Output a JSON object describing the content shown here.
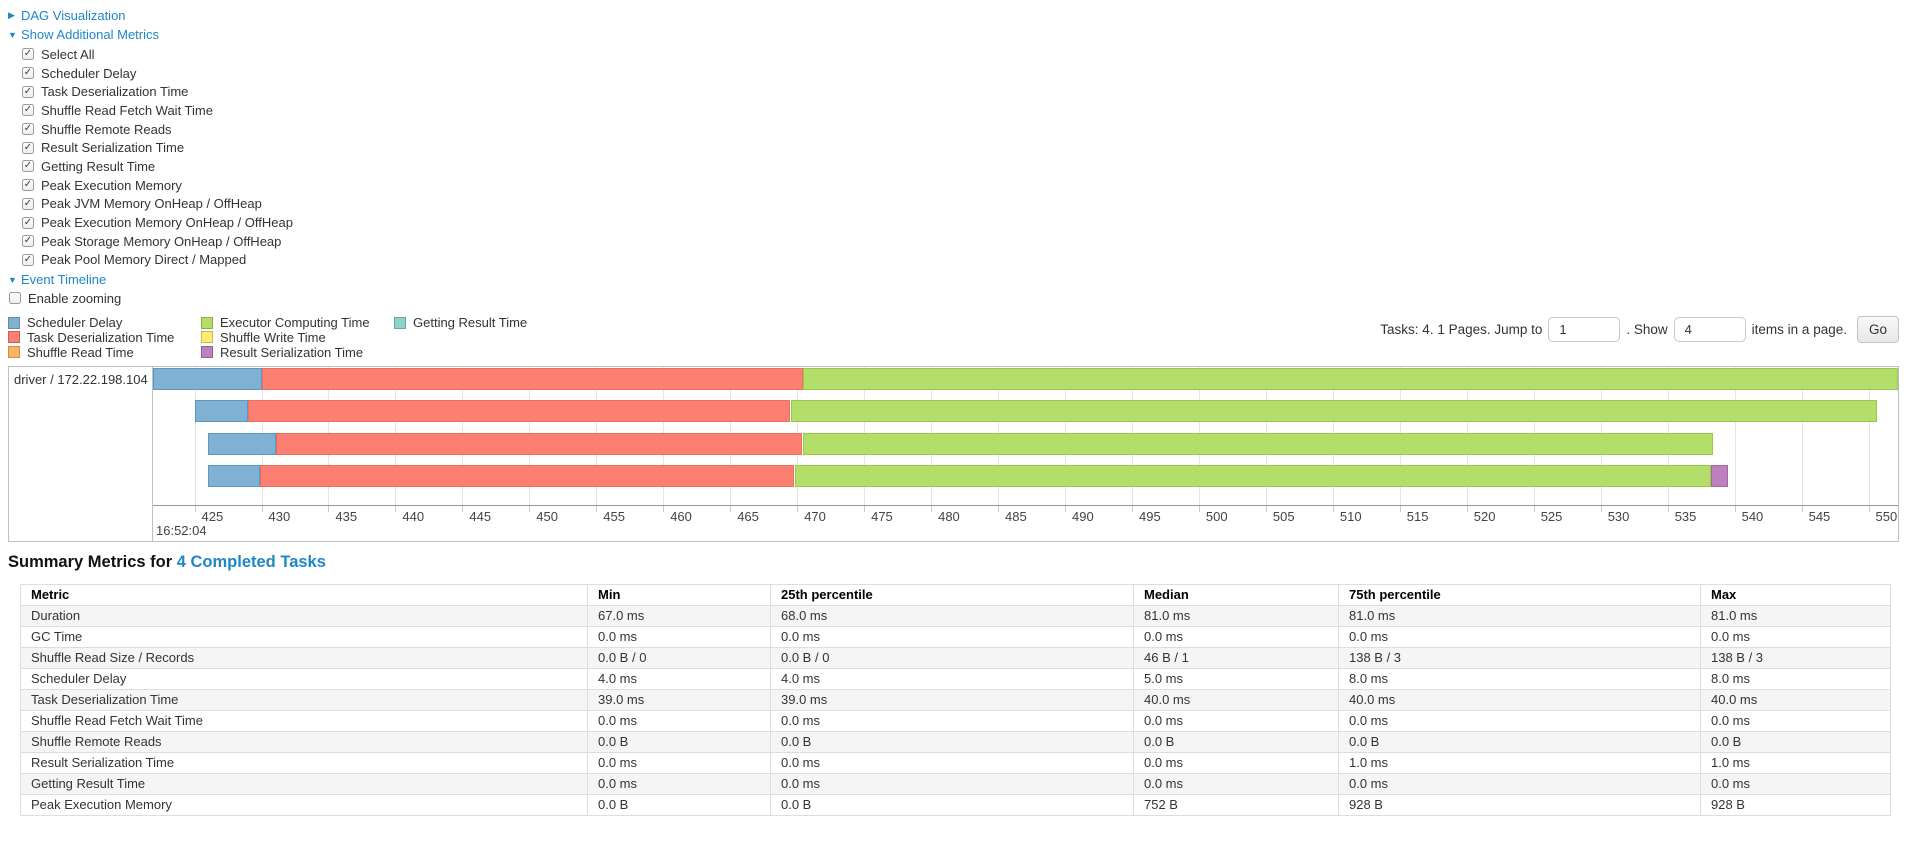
{
  "colors": {
    "link": "#1e87c6",
    "scheduler_delay": "#80B1D3",
    "task_deserialization": "#FB8072",
    "shuffle_read": "#FDB462",
    "executor_computing": "#B3DE69",
    "shuffle_write": "#FFED6F",
    "result_serialization": "#BC80BD",
    "getting_result": "#8DD3C7"
  },
  "toggles": {
    "dag": "DAG Visualization",
    "metrics": "Show Additional Metrics",
    "timeline": "Event Timeline"
  },
  "metric_checkboxes": [
    {
      "label": "Select All",
      "checked": true
    },
    {
      "label": "Scheduler Delay",
      "checked": true
    },
    {
      "label": "Task Deserialization Time",
      "checked": true
    },
    {
      "label": "Shuffle Read Fetch Wait Time",
      "checked": true
    },
    {
      "label": "Shuffle Remote Reads",
      "checked": true
    },
    {
      "label": "Result Serialization Time",
      "checked": true
    },
    {
      "label": "Getting Result Time",
      "checked": true
    },
    {
      "label": "Peak Execution Memory",
      "checked": true
    },
    {
      "label": "Peak JVM Memory OnHeap / OffHeap",
      "checked": true
    },
    {
      "label": "Peak Execution Memory OnHeap / OffHeap",
      "checked": true
    },
    {
      "label": "Peak Storage Memory OnHeap / OffHeap",
      "checked": true
    },
    {
      "label": "Peak Pool Memory Direct / Mapped",
      "checked": true
    }
  ],
  "enable_zooming": {
    "label": "Enable zooming",
    "checked": false
  },
  "legend": {
    "columns": [
      [
        {
          "label": "Scheduler Delay",
          "color_key": "scheduler_delay"
        },
        {
          "label": "Task Deserialization Time",
          "color_key": "task_deserialization"
        },
        {
          "label": "Shuffle Read Time",
          "color_key": "shuffle_read"
        }
      ],
      [
        {
          "label": "Executor Computing Time",
          "color_key": "executor_computing"
        },
        {
          "label": "Shuffle Write Time",
          "color_key": "shuffle_write"
        },
        {
          "label": "Result Serialization Time",
          "color_key": "result_serialization"
        }
      ],
      [
        {
          "label": "Getting Result Time",
          "color_key": "getting_result"
        }
      ]
    ]
  },
  "pagination": {
    "tasks_text": "Tasks: 4. 1 Pages. Jump to",
    "jump_value": "1",
    "mid_text": ". Show",
    "show_value": "4",
    "suffix_text": "items in a page.",
    "go_label": "Go"
  },
  "timeline": {
    "group_label": "driver / 172.22.198.104",
    "axis_start_time": "16:52:04",
    "chart_data": {
      "type": "gantt",
      "title": "Event Timeline (tasks on driver / 172.22.198.104)",
      "x_axis": {
        "min": 421.9,
        "max": 552.2,
        "tick_start": 425,
        "tick_end": 550,
        "tick_step": 5,
        "time_origin_label": "16:52:04",
        "units": "ms within 16:52:04"
      },
      "tasks": [
        {
          "segments": [
            {
              "name": "scheduler-delay",
              "start": 421.9,
              "end": 430.0
            },
            {
              "name": "task-deserialization",
              "start": 430.0,
              "end": 470.4
            },
            {
              "name": "executor-computing",
              "start": 470.4,
              "end": 552.2
            }
          ]
        },
        {
          "segments": [
            {
              "name": "scheduler-delay",
              "start": 425.0,
              "end": 429.0
            },
            {
              "name": "task-deserialization",
              "start": 429.0,
              "end": 469.5
            },
            {
              "name": "executor-computing",
              "start": 469.5,
              "end": 550.6
            }
          ]
        },
        {
          "segments": [
            {
              "name": "scheduler-delay",
              "start": 426.0,
              "end": 431.1
            },
            {
              "name": "task-deserialization",
              "start": 431.1,
              "end": 470.4
            },
            {
              "name": "executor-computing",
              "start": 470.4,
              "end": 538.4
            }
          ]
        },
        {
          "segments": [
            {
              "name": "scheduler-delay",
              "start": 426.0,
              "end": 429.9
            },
            {
              "name": "task-deserialization",
              "start": 429.9,
              "end": 469.8
            },
            {
              "name": "executor-computing",
              "start": 469.8,
              "end": 538.2
            },
            {
              "name": "result-serialization",
              "start": 538.2,
              "end": 539.5
            }
          ]
        }
      ]
    }
  },
  "summary": {
    "heading_prefix": "Summary Metrics for ",
    "heading_link": "4 Completed Tasks",
    "columns": [
      "Metric",
      "Min",
      "25th percentile",
      "Median",
      "75th percentile",
      "Max"
    ],
    "rows": [
      [
        "Duration",
        "67.0 ms",
        "68.0 ms",
        "81.0 ms",
        "81.0 ms",
        "81.0 ms"
      ],
      [
        "GC Time",
        "0.0 ms",
        "0.0 ms",
        "0.0 ms",
        "0.0 ms",
        "0.0 ms"
      ],
      [
        "Shuffle Read Size / Records",
        "0.0 B / 0",
        "0.0 B / 0",
        "46 B / 1",
        "138 B / 3",
        "138 B / 3"
      ],
      [
        "Scheduler Delay",
        "4.0 ms",
        "4.0 ms",
        "5.0 ms",
        "8.0 ms",
        "8.0 ms"
      ],
      [
        "Task Deserialization Time",
        "39.0 ms",
        "39.0 ms",
        "40.0 ms",
        "40.0 ms",
        "40.0 ms"
      ],
      [
        "Shuffle Read Fetch Wait Time",
        "0.0 ms",
        "0.0 ms",
        "0.0 ms",
        "0.0 ms",
        "0.0 ms"
      ],
      [
        "Shuffle Remote Reads",
        "0.0 B",
        "0.0 B",
        "0.0 B",
        "0.0 B",
        "0.0 B"
      ],
      [
        "Result Serialization Time",
        "0.0 ms",
        "0.0 ms",
        "0.0 ms",
        "1.0 ms",
        "1.0 ms"
      ],
      [
        "Getting Result Time",
        "0.0 ms",
        "0.0 ms",
        "0.0 ms",
        "0.0 ms",
        "0.0 ms"
      ],
      [
        "Peak Execution Memory",
        "0.0 B",
        "0.0 B",
        "752 B",
        "928 B",
        "928 B"
      ]
    ]
  }
}
